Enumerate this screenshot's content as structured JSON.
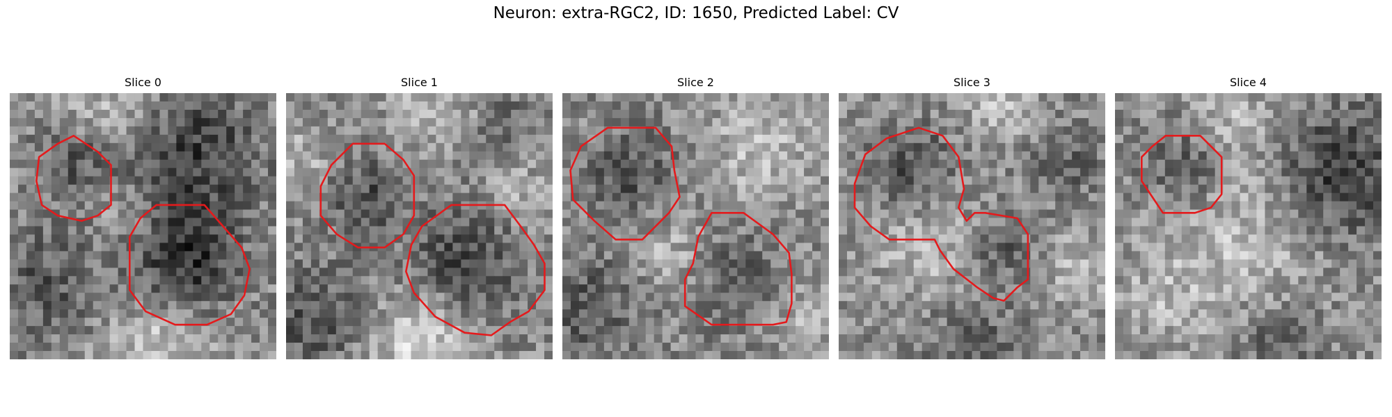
{
  "figure": {
    "title": "Neuron: extra-RGC2, ID: 1650, Predicted Label: CV",
    "outline_color": "#e41a1c"
  },
  "panels": [
    {
      "title": "Slice 0",
      "seed": 11,
      "darkSpots": [
        [
          0.24,
          0.26,
          0.14,
          55
        ],
        [
          0.65,
          0.63,
          0.2,
          95
        ],
        [
          0.68,
          0.22,
          0.25,
          80
        ],
        [
          0.12,
          0.72,
          0.22,
          50
        ]
      ],
      "brightSpots": [
        [
          0.4,
          0.05,
          0.2,
          45
        ],
        [
          0.55,
          0.95,
          0.2,
          60
        ],
        [
          0.45,
          0.45,
          0.12,
          40
        ]
      ],
      "contours": [
        [
          [
            0.24,
            0.16
          ],
          [
            0.33,
            0.22
          ],
          [
            0.38,
            0.27
          ],
          [
            0.38,
            0.42
          ],
          [
            0.33,
            0.46
          ],
          [
            0.27,
            0.48
          ],
          [
            0.18,
            0.46
          ],
          [
            0.12,
            0.42
          ],
          [
            0.1,
            0.33
          ],
          [
            0.11,
            0.24
          ],
          [
            0.18,
            0.19
          ]
        ],
        [
          [
            0.55,
            0.42
          ],
          [
            0.73,
            0.42
          ],
          [
            0.8,
            0.5
          ],
          [
            0.87,
            0.58
          ],
          [
            0.9,
            0.66
          ],
          [
            0.88,
            0.76
          ],
          [
            0.83,
            0.83
          ],
          [
            0.74,
            0.87
          ],
          [
            0.62,
            0.87
          ],
          [
            0.51,
            0.82
          ],
          [
            0.45,
            0.74
          ],
          [
            0.45,
            0.54
          ],
          [
            0.49,
            0.47
          ]
        ]
      ]
    },
    {
      "title": "Slice 1",
      "seed": 23,
      "darkSpots": [
        [
          0.3,
          0.38,
          0.16,
          60
        ],
        [
          0.68,
          0.62,
          0.2,
          70
        ],
        [
          0.8,
          0.15,
          0.2,
          45
        ],
        [
          0.1,
          0.85,
          0.2,
          55
        ]
      ],
      "brightSpots": [
        [
          0.6,
          0.05,
          0.2,
          50
        ],
        [
          0.5,
          0.95,
          0.18,
          70
        ],
        [
          0.85,
          0.35,
          0.15,
          50
        ],
        [
          0.05,
          0.25,
          0.15,
          40
        ]
      ],
      "contours": [
        [
          [
            0.25,
            0.19
          ],
          [
            0.37,
            0.19
          ],
          [
            0.44,
            0.25
          ],
          [
            0.48,
            0.31
          ],
          [
            0.48,
            0.46
          ],
          [
            0.44,
            0.53
          ],
          [
            0.37,
            0.58
          ],
          [
            0.27,
            0.58
          ],
          [
            0.19,
            0.53
          ],
          [
            0.13,
            0.46
          ],
          [
            0.13,
            0.35
          ],
          [
            0.17,
            0.27
          ]
        ],
        [
          [
            0.62,
            0.42
          ],
          [
            0.82,
            0.42
          ],
          [
            0.88,
            0.5
          ],
          [
            0.93,
            0.57
          ],
          [
            0.97,
            0.64
          ],
          [
            0.97,
            0.74
          ],
          [
            0.91,
            0.82
          ],
          [
            0.84,
            0.86
          ],
          [
            0.77,
            0.91
          ],
          [
            0.67,
            0.9
          ],
          [
            0.56,
            0.84
          ],
          [
            0.48,
            0.75
          ],
          [
            0.45,
            0.67
          ],
          [
            0.47,
            0.57
          ],
          [
            0.51,
            0.5
          ]
        ]
      ]
    },
    {
      "title": "Slice 2",
      "seed": 37,
      "darkSpots": [
        [
          0.25,
          0.3,
          0.17,
          55
        ],
        [
          0.66,
          0.7,
          0.18,
          45
        ],
        [
          0.1,
          0.8,
          0.2,
          50
        ]
      ],
      "brightSpots": [
        [
          0.75,
          0.2,
          0.2,
          50
        ],
        [
          0.4,
          0.6,
          0.15,
          40
        ],
        [
          0.92,
          0.85,
          0.12,
          45
        ]
      ],
      "contours": [
        [
          [
            0.17,
            0.13
          ],
          [
            0.35,
            0.13
          ],
          [
            0.41,
            0.2
          ],
          [
            0.42,
            0.29
          ],
          [
            0.44,
            0.39
          ],
          [
            0.4,
            0.45
          ],
          [
            0.3,
            0.55
          ],
          [
            0.2,
            0.55
          ],
          [
            0.12,
            0.48
          ],
          [
            0.04,
            0.4
          ],
          [
            0.03,
            0.29
          ],
          [
            0.07,
            0.2
          ]
        ],
        [
          [
            0.56,
            0.45
          ],
          [
            0.68,
            0.45
          ],
          [
            0.79,
            0.53
          ],
          [
            0.85,
            0.6
          ],
          [
            0.86,
            0.68
          ],
          [
            0.86,
            0.79
          ],
          [
            0.84,
            0.86
          ],
          [
            0.79,
            0.87
          ],
          [
            0.56,
            0.87
          ],
          [
            0.46,
            0.8
          ],
          [
            0.46,
            0.7
          ],
          [
            0.49,
            0.64
          ],
          [
            0.51,
            0.54
          ]
        ]
      ]
    },
    {
      "title": "Slice 3",
      "seed": 51,
      "darkSpots": [
        [
          0.28,
          0.28,
          0.15,
          60
        ],
        [
          0.6,
          0.6,
          0.12,
          50
        ],
        [
          0.85,
          0.25,
          0.15,
          45
        ],
        [
          0.5,
          0.97,
          0.2,
          45
        ]
      ],
      "brightSpots": [
        [
          0.62,
          0.05,
          0.15,
          45
        ],
        [
          0.35,
          0.6,
          0.2,
          45
        ],
        [
          0.9,
          0.65,
          0.15,
          40
        ]
      ],
      "contours": [
        [
          [
            0.18,
            0.17
          ],
          [
            0.3,
            0.13
          ],
          [
            0.39,
            0.16
          ],
          [
            0.45,
            0.24
          ],
          [
            0.47,
            0.36
          ],
          [
            0.45,
            0.43
          ],
          [
            0.48,
            0.48
          ],
          [
            0.51,
            0.45
          ],
          [
            0.55,
            0.45
          ],
          [
            0.67,
            0.47
          ],
          [
            0.71,
            0.53
          ],
          [
            0.71,
            0.7
          ],
          [
            0.67,
            0.73
          ],
          [
            0.62,
            0.78
          ],
          [
            0.58,
            0.77
          ],
          [
            0.52,
            0.73
          ],
          [
            0.43,
            0.66
          ],
          [
            0.38,
            0.59
          ],
          [
            0.36,
            0.55
          ],
          [
            0.19,
            0.55
          ],
          [
            0.12,
            0.5
          ],
          [
            0.06,
            0.43
          ],
          [
            0.06,
            0.34
          ],
          [
            0.1,
            0.23
          ]
        ]
      ]
    },
    {
      "title": "Slice 4",
      "seed": 67,
      "darkSpots": [
        [
          0.26,
          0.28,
          0.13,
          55
        ],
        [
          0.85,
          0.3,
          0.22,
          85
        ],
        [
          0.6,
          0.95,
          0.15,
          40
        ]
      ],
      "brightSpots": [
        [
          0.5,
          0.55,
          0.25,
          45
        ],
        [
          0.2,
          0.75,
          0.2,
          40
        ],
        [
          0.45,
          0.1,
          0.15,
          40
        ]
      ],
      "contours": [
        [
          [
            0.19,
            0.16
          ],
          [
            0.32,
            0.16
          ],
          [
            0.36,
            0.2
          ],
          [
            0.4,
            0.24
          ],
          [
            0.4,
            0.38
          ],
          [
            0.36,
            0.43
          ],
          [
            0.3,
            0.45
          ],
          [
            0.18,
            0.45
          ],
          [
            0.14,
            0.39
          ],
          [
            0.1,
            0.33
          ],
          [
            0.1,
            0.24
          ],
          [
            0.14,
            0.2
          ]
        ]
      ]
    }
  ]
}
